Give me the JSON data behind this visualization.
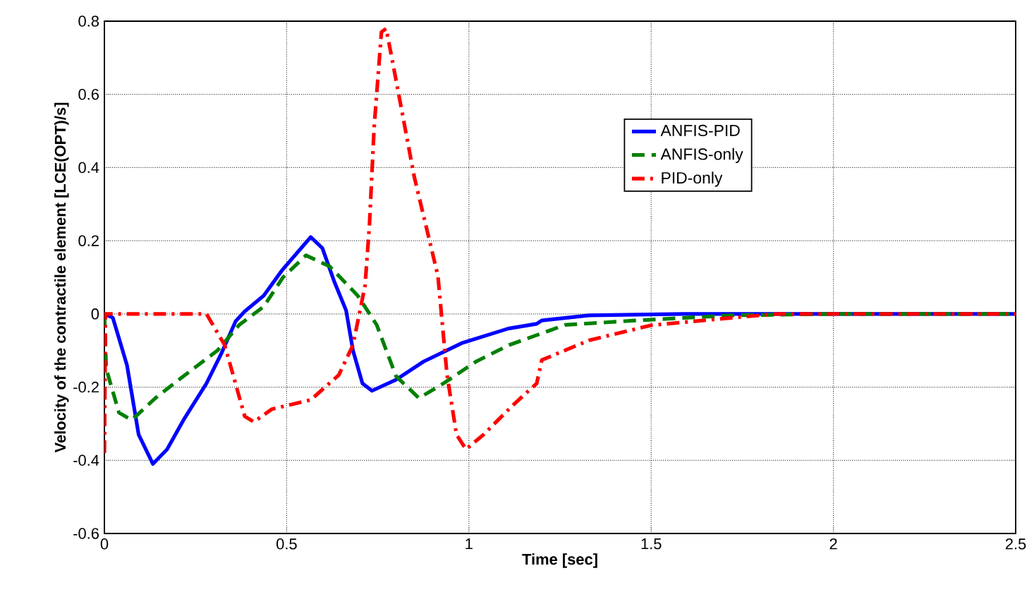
{
  "chart_data": {
    "type": "line",
    "xlabel": "Time [sec]",
    "ylabel": "Velocity of the contractile element [LCE(OPT)/s]",
    "xlim": [
      0,
      2.5
    ],
    "ylim": [
      -0.6,
      0.8
    ],
    "xticks": [
      0,
      0.5,
      1,
      1.5,
      2,
      2.5
    ],
    "yticks": [
      -0.6,
      -0.4,
      -0.2,
      0,
      0.2,
      0.4,
      0.6,
      0.8
    ],
    "grid": true,
    "legend": "top right",
    "series": [
      {
        "name": "ANFIS-PID",
        "color": "#0000ff",
        "line_style": "solid",
        "x": [
          0,
          0.023,
          0.062,
          0.094,
          0.133,
          0.172,
          0.217,
          0.28,
          0.32,
          0.36,
          0.385,
          0.437,
          0.488,
          0.54,
          0.566,
          0.598,
          0.63,
          0.663,
          0.682,
          0.708,
          0.734,
          0.8,
          0.876,
          0.98,
          1.108,
          1.186,
          1.2,
          1.33,
          1.59,
          2.0,
          2.5
        ],
        "values": [
          0,
          -0.01,
          -0.14,
          -0.33,
          -0.41,
          -0.37,
          -0.29,
          -0.19,
          -0.11,
          -0.02,
          0.007,
          0.05,
          0.12,
          0.18,
          0.21,
          0.18,
          0.09,
          0.01,
          -0.1,
          -0.19,
          -0.21,
          -0.18,
          -0.13,
          -0.08,
          -0.04,
          -0.027,
          -0.018,
          -0.004,
          0,
          0,
          0
        ]
      },
      {
        "name": "ANFIS-only",
        "color": "#008000",
        "line_style": "dashed",
        "x": [
          0,
          0.005,
          0.04,
          0.075,
          0.14,
          0.204,
          0.31,
          0.37,
          0.437,
          0.49,
          0.553,
          0.618,
          0.695,
          0.747,
          0.8,
          0.863,
          0.93,
          1.02,
          1.11,
          1.186,
          1.264,
          1.457,
          1.716,
          2.0,
          2.5
        ],
        "values": [
          0,
          -0.15,
          -0.27,
          -0.29,
          -0.23,
          -0.18,
          -0.1,
          -0.03,
          0.02,
          0.1,
          0.16,
          0.13,
          0.05,
          -0.03,
          -0.17,
          -0.23,
          -0.19,
          -0.13,
          -0.085,
          -0.058,
          -0.03,
          -0.018,
          -0.004,
          0,
          0
        ]
      },
      {
        "name": "PID-only",
        "color": "#ff0000",
        "line_style": "dashdot",
        "x": [
          0,
          0.003,
          0.28,
          0.33,
          0.385,
          0.41,
          0.46,
          0.566,
          0.643,
          0.682,
          0.715,
          0.727,
          0.74,
          0.76,
          0.773,
          0.798,
          0.85,
          0.915,
          0.94,
          0.966,
          0.992,
          1.04,
          1.12,
          1.186,
          1.2,
          1.33,
          1.5,
          1.716,
          1.845,
          2.0,
          2.5
        ],
        "values": [
          -0.38,
          0,
          0,
          -0.085,
          -0.28,
          -0.295,
          -0.26,
          -0.235,
          -0.167,
          -0.085,
          0.077,
          0.24,
          0.51,
          0.77,
          0.78,
          0.65,
          0.375,
          0.104,
          -0.167,
          -0.33,
          -0.37,
          -0.33,
          -0.25,
          -0.19,
          -0.126,
          -0.072,
          -0.031,
          -0.011,
          0,
          0,
          0
        ]
      }
    ]
  }
}
